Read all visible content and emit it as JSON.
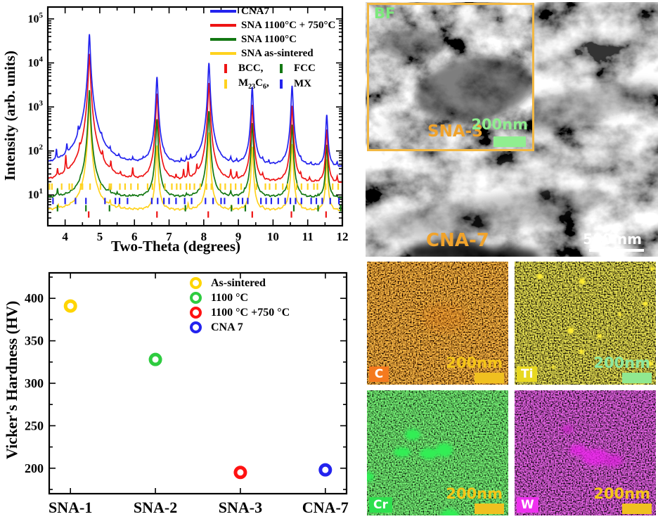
{
  "tem": {
    "inset_tag": "BF",
    "inset_sample": "SNA-3",
    "inset_scale": "200nm",
    "main_sample": "CNA-7",
    "main_scale": "500 nm",
    "sample_label_color": "#f0a32c",
    "inset_tag_color": "#7de87d",
    "inset_scale_color": "#8fee8f",
    "inset_bar_color": "#90ee90",
    "border_color": "#f2b843"
  },
  "eds": {
    "maps": [
      {
        "element": "C",
        "scale": "200nm",
        "label_bg": "#f47a1f",
        "scale_text_color": "#f5c518",
        "bar_color": "#f0c020"
      },
      {
        "element": "Ti",
        "scale": "200nm",
        "label_bg": "#e8d820",
        "scale_text_color": "#8ce8a0",
        "bar_color": "#90e890"
      },
      {
        "element": "Cr",
        "scale": "200nm",
        "label_bg": "#2ee04e",
        "scale_text_color": "#f5c518",
        "bar_color": "#f0c020"
      },
      {
        "element": "W",
        "scale": "200nm",
        "label_bg": "#ee30ee",
        "scale_text_color": "#f5c518",
        "bar_color": "#f0c020"
      }
    ]
  },
  "m23c6_parts": {
    "m": "M",
    "s1": "23",
    "c": "C",
    "s2": "6",
    "comma": ","
  },
  "chart_data": [
    {
      "id": "xrd",
      "type": "line",
      "title": "",
      "xlabel": "Two-Theta (degrees)",
      "ylabel": "Intensity (arb. units)",
      "xlim": [
        3.5,
        12
      ],
      "xticks": [
        4,
        5,
        6,
        7,
        8,
        9,
        10,
        11,
        12
      ],
      "ylog": true,
      "ylim": [
        2,
        186000
      ],
      "ytick_exponents": [
        1,
        2,
        3,
        4,
        5
      ],
      "grid": false,
      "legend_position": "top-right",
      "series": [
        {
          "name": "CNA7",
          "color": "#2323ee",
          "baseline": 42,
          "peaks": [
            [
              4.7,
              45000
            ],
            [
              6.65,
              4800
            ],
            [
              8.15,
              10000
            ],
            [
              9.4,
              2800
            ],
            [
              10.55,
              3000
            ],
            [
              11.55,
              620
            ]
          ],
          "minor_peaks": [
            [
              3.75,
              45
            ],
            [
              4.05,
              55
            ],
            [
              4.38,
              120
            ],
            [
              5.05,
              45
            ],
            [
              5.3,
              22
            ],
            [
              5.55,
              10
            ],
            [
              5.95,
              14
            ],
            [
              6.25,
              10
            ],
            [
              6.85,
              8
            ],
            [
              7.35,
              10
            ],
            [
              7.5,
              14
            ],
            [
              7.62,
              22
            ],
            [
              7.8,
              10
            ],
            [
              8.78,
              14
            ],
            [
              8.95,
              8
            ],
            [
              9.7,
              10
            ],
            [
              9.88,
              8
            ],
            [
              10.8,
              8
            ],
            [
              11.1,
              6
            ],
            [
              11.85,
              8
            ]
          ]
        },
        {
          "name": "SNA 1100°C + 750°C",
          "color": "#ee1414",
          "baseline": 18,
          "peaks": [
            [
              4.7,
              16000
            ],
            [
              6.65,
              2000
            ],
            [
              8.15,
              3500
            ],
            [
              9.4,
              1100
            ],
            [
              10.55,
              1050
            ],
            [
              11.55,
              290
            ]
          ],
          "minor_peaks": [
            [
              3.78,
              14
            ],
            [
              4.02,
              45
            ],
            [
              4.42,
              40
            ],
            [
              5.08,
              28
            ],
            [
              5.32,
              22
            ],
            [
              5.6,
              6
            ],
            [
              5.95,
              18
            ],
            [
              7.2,
              5
            ],
            [
              7.42,
              14
            ],
            [
              7.55,
              32
            ],
            [
              7.8,
              18
            ],
            [
              8.78,
              14
            ],
            [
              8.95,
              10
            ],
            [
              9.7,
              6
            ],
            [
              10.8,
              6
            ],
            [
              11.05,
              4
            ],
            [
              11.85,
              6
            ]
          ]
        },
        {
          "name": "SNA 1100°C",
          "color": "#137813",
          "baseline": 8.2,
          "peaks": [
            [
              4.7,
              2400
            ],
            [
              6.65,
              520
            ],
            [
              8.15,
              800
            ],
            [
              9.4,
              420
            ],
            [
              10.55,
              390
            ],
            [
              11.55,
              130
            ]
          ],
          "minor_peaks": [
            [
              3.78,
              5
            ],
            [
              4.45,
              2
            ],
            [
              5.28,
              4
            ],
            [
              5.5,
              1.5
            ],
            [
              5.95,
              1
            ],
            [
              7.5,
              1.5
            ],
            [
              8.78,
              2.5
            ],
            [
              9.18,
              1.5
            ],
            [
              10.68,
              2
            ],
            [
              11.3,
              1
            ]
          ]
        },
        {
          "name": "SNA as-sintered",
          "color": "#ffd21e",
          "baseline": 4.3,
          "peaks": [
            [
              4.7,
              1300
            ],
            [
              6.65,
              130
            ],
            [
              8.15,
              260
            ],
            [
              9.4,
              120
            ],
            [
              10.55,
              140
            ],
            [
              11.55,
              60
            ]
          ],
          "minor_peaks": [
            [
              3.8,
              1.2
            ],
            [
              4.45,
              1
            ],
            [
              5.3,
              1.8
            ],
            [
              5.55,
              0.8
            ],
            [
              7.55,
              1.5
            ],
            [
              8.8,
              1
            ],
            [
              9.7,
              0.5
            ],
            [
              10.8,
              0.8
            ]
          ]
        }
      ],
      "marker_legend": [
        {
          "label": "BCC,",
          "color": "#ee1414"
        },
        {
          "label": "FCC",
          "color": "#137813"
        },
        {
          "label": "M23C6,",
          "color": "#ffd21e"
        },
        {
          "label": "MX",
          "color": "#2323ee"
        }
      ],
      "phase_markers": [
        {
          "name": "BCC",
          "color": "#ee1414",
          "y": 3.6,
          "x": [
            4.68,
            6.65,
            8.13,
            9.4,
            10.53,
            11.53
          ]
        },
        {
          "name": "FCC",
          "color": "#137813",
          "y": 5.0,
          "x": [
            3.78,
            4.6,
            5.28,
            7.47,
            8.8,
            9.2,
            10.6,
            11.3,
            11.95
          ]
        },
        {
          "name": "M23C6",
          "color": "#ffd21e",
          "y": 15.5,
          "x": [
            3.55,
            3.62,
            3.9,
            4.12,
            4.2,
            4.45,
            4.5,
            4.72,
            5.02,
            5.28,
            5.33,
            5.58,
            5.73,
            5.9,
            6.1,
            6.38,
            6.52,
            6.73,
            6.88,
            7.08,
            7.22,
            7.33,
            7.5,
            7.6,
            7.73,
            7.9,
            8.08,
            8.22,
            8.48,
            8.62,
            8.78,
            8.92,
            9.08,
            9.32,
            9.52,
            9.78,
            9.9,
            10.08,
            10.28,
            10.42,
            10.68,
            10.82,
            11.0,
            11.18,
            11.28,
            11.52,
            11.72,
            11.88
          ]
        },
        {
          "name": "MX",
          "color": "#2323ee",
          "y": 7.3,
          "x": [
            3.65,
            4.0,
            4.3,
            4.6,
            5.15,
            5.45,
            5.57,
            5.8,
            6.5,
            6.67,
            6.85,
            7.0,
            7.2,
            7.45,
            7.65,
            8.05,
            8.27,
            8.5,
            8.6,
            9.0,
            9.12,
            9.27,
            9.65,
            9.8,
            9.95,
            10.15,
            10.35,
            10.5,
            10.65,
            10.82,
            11.1,
            11.25,
            11.42,
            11.65,
            11.9
          ]
        }
      ]
    },
    {
      "id": "hardness",
      "type": "scatter",
      "title": "",
      "xlabel": "",
      "ylabel": "Vicker's Hardness (HV)",
      "categories": [
        "SNA-1",
        "SNA-2",
        "SNA-3",
        "CNA-7"
      ],
      "values": [
        391,
        328,
        195,
        198
      ],
      "colors": [
        "#ffd500",
        "#2ecc40",
        "#ff1212",
        "#2323ee"
      ],
      "ylim": [
        170,
        430
      ],
      "yticks": [
        200,
        250,
        300,
        350,
        400
      ],
      "grid": false,
      "legend_position": "top-right",
      "legend": [
        {
          "label": "As-sintered",
          "color": "#ffd500"
        },
        {
          "label": "1100 °C",
          "color": "#2ecc40"
        },
        {
          "label": "1100 °C +750 °C",
          "color": "#ff1212"
        },
        {
          "label": "CNA 7",
          "color": "#2323ee"
        }
      ]
    }
  ]
}
